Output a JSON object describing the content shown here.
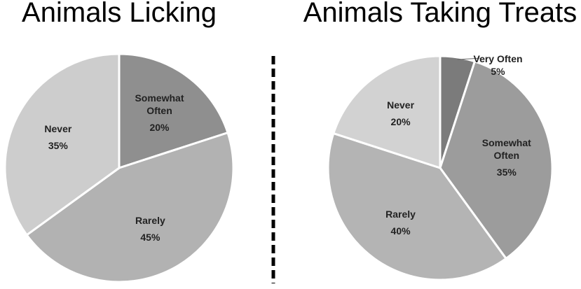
{
  "chart_data": [
    {
      "type": "pie",
      "title": "Animals Licking",
      "categories": [
        "Somewhat Often",
        "Rarely",
        "Never"
      ],
      "values": [
        20,
        45,
        35
      ],
      "value_labels": [
        "20%",
        "45%",
        "35%"
      ],
      "colors": [
        "#8f8f8f",
        "#b2b2b2",
        "#cdcdcd"
      ]
    },
    {
      "type": "pie",
      "title": "Animals Taking Treats",
      "categories": [
        "Very Often",
        "Somewhat Often",
        "Rarely",
        "Never"
      ],
      "values": [
        5,
        35,
        40,
        20
      ],
      "value_labels": [
        "5%",
        "35%",
        "40%",
        "20%"
      ],
      "colors": [
        "#7b7b7b",
        "#9c9c9c",
        "#b4b4b4",
        "#d2d2d2"
      ]
    }
  ]
}
